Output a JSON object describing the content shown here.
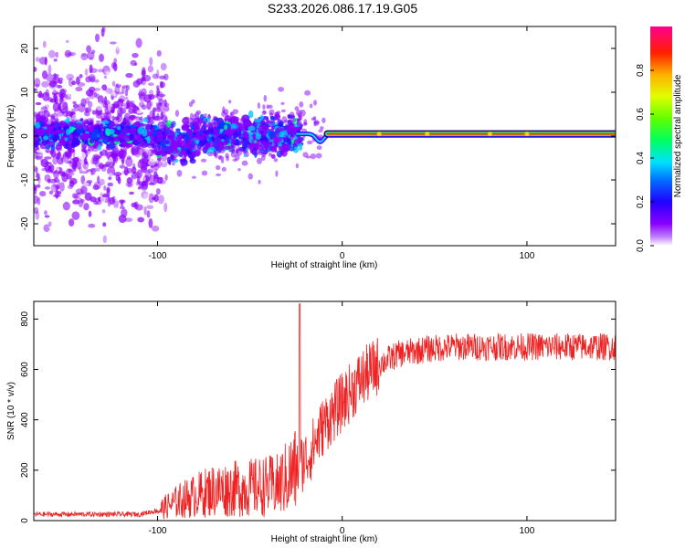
{
  "title": "S233.2026.086.17.19.G05",
  "chart_data": [
    {
      "type": "heatmap",
      "name": "spectrogram",
      "xlabel": "Height of straight line (km)",
      "ylabel": "Frequency (Hz)",
      "xlim": [
        -167,
        148
      ],
      "ylim": [
        -25,
        25
      ],
      "xticks": [
        -100,
        0,
        100
      ],
      "yticks": [
        -20,
        -10,
        0,
        10,
        20
      ],
      "xtick_labels": [
        "-100",
        "0",
        "100"
      ],
      "ytick_labels": [
        "-20",
        "-10",
        "0",
        "10",
        "20"
      ],
      "colorbar": {
        "label": "Normalized spectral amplitude",
        "range": [
          0,
          1
        ],
        "ticks": [
          0.0,
          0.2,
          0.4,
          0.6,
          0.8
        ],
        "tick_labels": [
          "0.0",
          "0.2",
          "0.4",
          "0.6",
          "0.8"
        ],
        "colormap": [
          "#ffffff",
          "#8a00ff",
          "#3a00ff",
          "#0040ff",
          "#00c8ff",
          "#00ff80",
          "#40ff00",
          "#c8ff00",
          "#ffd000",
          "#ff8000",
          "#ff0000",
          "#ff0080"
        ]
      },
      "features": {
        "diffuse_scatter_region_km": [
          -167,
          -95
        ],
        "noisy_band_region_km": [
          -100,
          -22
        ],
        "noisy_band_center_hz": 0.5,
        "transition_dip_km": -12,
        "coherent_line_start_km": -8,
        "coherent_line_end_km": 148,
        "coherent_line_freq_hz": 0.5,
        "coherent_line_amplitude": 0.95
      }
    },
    {
      "type": "line",
      "name": "snr",
      "xlabel": "Height of straight line (km)",
      "ylabel": "SNR (10 * v/v)",
      "xlim": [
        -167,
        148
      ],
      "ylim": [
        0,
        870
      ],
      "xticks": [
        -100,
        0,
        100
      ],
      "yticks": [
        0,
        200,
        400,
        600,
        800
      ],
      "xtick_labels": [
        "-100",
        "0",
        "100"
      ],
      "ytick_labels": [
        "0",
        "200",
        "400",
        "600",
        "800"
      ],
      "color": "#ee2222",
      "envelope": [
        {
          "x": -167,
          "y": 25
        },
        {
          "x": -110,
          "y": 25
        },
        {
          "x": -100,
          "y": 40
        },
        {
          "x": -88,
          "y": 80
        },
        {
          "x": -70,
          "y": 120
        },
        {
          "x": -50,
          "y": 130
        },
        {
          "x": -35,
          "y": 140
        },
        {
          "x": -25,
          "y": 200
        },
        {
          "x": -18,
          "y": 260
        },
        {
          "x": -10,
          "y": 380
        },
        {
          "x": 0,
          "y": 470
        },
        {
          "x": 10,
          "y": 560
        },
        {
          "x": 20,
          "y": 620
        },
        {
          "x": 30,
          "y": 660
        },
        {
          "x": 45,
          "y": 680
        },
        {
          "x": 60,
          "y": 690
        },
        {
          "x": 148,
          "y": 690
        }
      ],
      "spike": {
        "x": -23,
        "y": 860
      }
    }
  ]
}
